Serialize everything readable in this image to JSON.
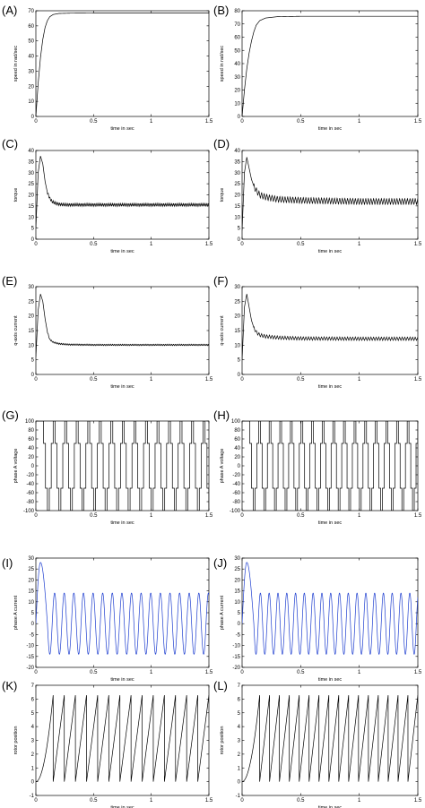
{
  "figure": {
    "background": "#ffffff"
  },
  "chart_data": [
    {
      "panel": "(A)",
      "type": "line",
      "xlabel": "time in sec",
      "ylabel": "speed in rad/sec",
      "xlim": [
        0,
        1.5
      ],
      "ylim": [
        0,
        70
      ],
      "xticks": [
        "0",
        "0.5",
        "1",
        "1.5"
      ],
      "yticks": [
        "0",
        "10",
        "20",
        "30",
        "40",
        "50",
        "60",
        "70"
      ],
      "yticks_vals": [
        0,
        10,
        20,
        30,
        40,
        50,
        60,
        70
      ],
      "x": [
        0,
        0.02,
        0.04,
        0.06,
        0.08,
        0.1,
        0.12,
        0.15,
        0.2,
        0.3,
        0.5,
        1.0,
        1.5
      ],
      "y": [
        0,
        22,
        39,
        51,
        59,
        63.5,
        66,
        67.5,
        68.2,
        68.4,
        68.5,
        68.5,
        68.5
      ],
      "color": "#000000"
    },
    {
      "panel": "(B)",
      "type": "line",
      "xlabel": "time in sec",
      "ylabel": "speed in rad/sec",
      "xlim": [
        0,
        1.5
      ],
      "ylim": [
        0,
        80
      ],
      "xticks": [
        "0",
        "0.5",
        "1",
        "1.5"
      ],
      "yticks": [
        "0",
        "10",
        "20",
        "30",
        "40",
        "50",
        "60",
        "70",
        "80"
      ],
      "yticks_vals": [
        0,
        10,
        20,
        30,
        40,
        50,
        60,
        70,
        80
      ],
      "x": [
        0,
        0.02,
        0.04,
        0.06,
        0.08,
        0.1,
        0.12,
        0.15,
        0.2,
        0.3,
        0.5,
        1.0,
        1.5
      ],
      "y": [
        0,
        20,
        36,
        48,
        57,
        64,
        69,
        72.5,
        74.5,
        75.5,
        75.8,
        75.8,
        75.8
      ],
      "color": "#000000"
    },
    {
      "panel": "(C)",
      "type": "line",
      "xlabel": "time in sec",
      "ylabel": "torque",
      "xlim": [
        0,
        1.5
      ],
      "ylim": [
        0,
        40
      ],
      "xticks": [
        "0",
        "0.5",
        "1",
        "1.5"
      ],
      "yticks": [
        "0",
        "5",
        "10",
        "15",
        "20",
        "25",
        "30",
        "35",
        "40"
      ],
      "yticks_vals": [
        0,
        5,
        10,
        15,
        20,
        25,
        30,
        35,
        40
      ],
      "x": [
        0,
        0.02,
        0.04,
        0.06,
        0.08,
        0.1,
        0.12,
        0.14,
        0.17,
        0.2,
        0.25,
        0.3,
        0.5,
        1.0,
        1.5
      ],
      "y": [
        5,
        30,
        37.5,
        34,
        26,
        21,
        18.5,
        17,
        16.2,
        15.8,
        15.5,
        15.5,
        15.5,
        15.5,
        15.5
      ],
      "ripple": 1.3,
      "ripple_freq": 70,
      "color": "#000000"
    },
    {
      "panel": "(D)",
      "type": "line",
      "xlabel": "time in sec",
      "ylabel": "torque",
      "xlim": [
        0,
        1.5
      ],
      "ylim": [
        0,
        40
      ],
      "xticks": [
        "0",
        "0.5",
        "1",
        "1.5"
      ],
      "yticks": [
        "0",
        "5",
        "10",
        "15",
        "20",
        "25",
        "30",
        "35",
        "40"
      ],
      "yticks_vals": [
        0,
        5,
        10,
        15,
        20,
        25,
        30,
        35,
        40
      ],
      "x": [
        0,
        0.02,
        0.04,
        0.06,
        0.08,
        0.1,
        0.12,
        0.15,
        0.2,
        0.3,
        0.5,
        1.0,
        1.5
      ],
      "y": [
        4,
        30,
        37,
        32,
        27,
        24,
        22,
        20,
        19,
        18,
        17.5,
        17,
        17
      ],
      "ripple": 2.8,
      "ripple_freq": 45,
      "color": "#000000"
    },
    {
      "panel": "(E)",
      "type": "line",
      "xlabel": "time in sec",
      "ylabel": "q-axis current",
      "xlim": [
        0,
        1.5
      ],
      "ylim": [
        0,
        30
      ],
      "xticks": [
        "0",
        "0.5",
        "1",
        "1.5"
      ],
      "yticks": [
        "0",
        "5",
        "10",
        "15",
        "20",
        "25",
        "30"
      ],
      "yticks_vals": [
        0,
        5,
        10,
        15,
        20,
        25,
        30
      ],
      "x": [
        0,
        0.02,
        0.04,
        0.06,
        0.08,
        0.1,
        0.12,
        0.15,
        0.2,
        0.25,
        0.3,
        0.5,
        1.0,
        1.5
      ],
      "y": [
        6,
        22,
        27.5,
        25,
        19,
        14.5,
        12,
        11,
        10.5,
        10.3,
        10.2,
        10.1,
        10.1,
        10.1
      ],
      "ripple": 0.5,
      "ripple_freq": 70,
      "color": "#000000"
    },
    {
      "panel": "(F)",
      "type": "line",
      "xlabel": "time in sec",
      "ylabel": "q-axis current",
      "xlim": [
        0,
        1.5
      ],
      "ylim": [
        0,
        30
      ],
      "xticks": [
        "0",
        "0.5",
        "1",
        "1.5"
      ],
      "yticks": [
        "0",
        "5",
        "10",
        "15",
        "20",
        "25",
        "30"
      ],
      "yticks_vals": [
        0,
        5,
        10,
        15,
        20,
        25,
        30
      ],
      "x": [
        0,
        0.02,
        0.04,
        0.06,
        0.08,
        0.1,
        0.12,
        0.15,
        0.2,
        0.3,
        0.5,
        1.0,
        1.5
      ],
      "y": [
        5,
        23,
        27.5,
        23,
        18.5,
        16,
        14.5,
        13.5,
        13,
        12.6,
        12.3,
        12.2,
        12.2
      ],
      "ripple": 1.2,
      "ripple_freq": 45,
      "color": "#000000"
    },
    {
      "panel": "(G)",
      "type": "line",
      "xlabel": "time in sec",
      "ylabel": "phase A voltage",
      "xlim": [
        0,
        1.5
      ],
      "ylim": [
        -100,
        100
      ],
      "xticks": [
        "0",
        "0.5",
        "1",
        "1.5"
      ],
      "yticks": [
        "-100",
        "-80",
        "-60",
        "-40",
        "-20",
        "0",
        "20",
        "40",
        "60",
        "80",
        "100"
      ],
      "yticks_vals": [
        -100,
        -80,
        -60,
        -40,
        -20,
        0,
        20,
        40,
        60,
        80,
        100
      ],
      "wave": "six-step",
      "levels": [
        100,
        50,
        -50,
        -100
      ],
      "periods": 14.5,
      "t_start": 0.05,
      "color": "#000000"
    },
    {
      "panel": "(H)",
      "type": "line",
      "xlabel": "time in sec",
      "ylabel": "phase A voltage",
      "xlim": [
        0,
        1.5
      ],
      "ylim": [
        -100,
        100
      ],
      "xticks": [
        "0",
        "0.5",
        "1",
        "1.5"
      ],
      "yticks": [
        "-100",
        "-80",
        "-60",
        "-40",
        "-20",
        "0",
        "20",
        "40",
        "60",
        "80",
        "100"
      ],
      "yticks_vals": [
        -100,
        -80,
        -60,
        -40,
        -20,
        0,
        20,
        40,
        60,
        80,
        100
      ],
      "wave": "six-step",
      "levels": [
        100,
        50,
        -50,
        -100
      ],
      "periods": 16,
      "t_start": 0.05,
      "color": "#000000"
    },
    {
      "panel": "(I)",
      "type": "line",
      "xlabel": "time in sec",
      "ylabel": "phase A current",
      "xlim": [
        0,
        1.5
      ],
      "ylim": [
        -20,
        30
      ],
      "xticks": [
        "0",
        "0.5",
        "1",
        "1.5"
      ],
      "yticks": [
        "-20",
        "-15",
        "-10",
        "-5",
        "0",
        "5",
        "10",
        "15",
        "20",
        "25",
        "30"
      ],
      "yticks_vals": [
        -20,
        -15,
        -10,
        -5,
        0,
        5,
        10,
        15,
        20,
        25,
        30
      ],
      "wave": "sine-start",
      "peak_start": 28,
      "amplitude": 14,
      "periods": 18,
      "color": "#1f3fd0"
    },
    {
      "panel": "(J)",
      "type": "line",
      "xlabel": "time in sec",
      "ylabel": "phase A current",
      "xlim": [
        0,
        1.5
      ],
      "ylim": [
        -20,
        30
      ],
      "xticks": [
        "0",
        "0.5",
        "1",
        "1.5"
      ],
      "yticks": [
        "-20",
        "-15",
        "-10",
        "-5",
        "0",
        "5",
        "10",
        "15",
        "20",
        "25",
        "30"
      ],
      "yticks_vals": [
        -20,
        -15,
        -10,
        -5,
        0,
        5,
        10,
        15,
        20,
        25,
        30
      ],
      "wave": "sine-start",
      "peak_start": 28,
      "amplitude": 14,
      "periods": 20,
      "color": "#1f3fd0"
    },
    {
      "panel": "(K)",
      "type": "line",
      "xlabel": "time in sec",
      "ylabel": "rotor position",
      "xlim": [
        0,
        1.5
      ],
      "ylim": [
        -1,
        7
      ],
      "xticks": [
        "0",
        "0.5",
        "1",
        "1.5"
      ],
      "yticks": [
        "-1",
        "0",
        "1",
        "2",
        "3",
        "4",
        "5",
        "6",
        "7"
      ],
      "yticks_vals": [
        -1,
        0,
        1,
        2,
        3,
        4,
        5,
        6,
        7
      ],
      "wave": "sawtooth",
      "top": 6.28,
      "periods": 15,
      "color": "#000000"
    },
    {
      "panel": "(L)",
      "type": "line",
      "xlabel": "time in sec",
      "ylabel": "rotor position",
      "xlim": [
        0,
        1.5
      ],
      "ylim": [
        -1,
        7
      ],
      "xticks": [
        "0",
        "0.5",
        "1",
        "1.5"
      ],
      "yticks": [
        "-1",
        "0",
        "1",
        "2",
        "3",
        "4",
        "5",
        "6",
        "7"
      ],
      "yticks_vals": [
        -1,
        0,
        1,
        2,
        3,
        4,
        5,
        6,
        7
      ],
      "wave": "sawtooth",
      "top": 6.28,
      "periods": 17,
      "color": "#000000"
    }
  ]
}
